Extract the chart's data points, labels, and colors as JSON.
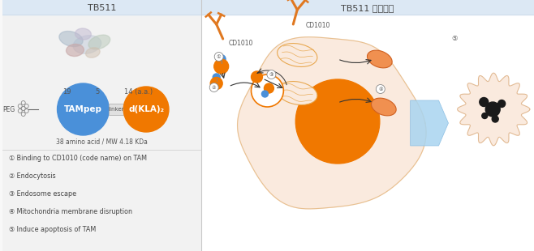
{
  "title_left": "TB511",
  "title_right": "TB511 작용기전",
  "left_bg": "#f0f0f0",
  "right_bg": "#ffffff",
  "header_bg": "#dce8f4",
  "tampep_color": "#4a90d9",
  "dkla_color": "#f07800",
  "orange": "#f07800",
  "blue": "#4a90d9",
  "cell_fill": "#faeade",
  "cell_border": "#e8c090",
  "nucleus_fill": "#f07800",
  "mito_fill": "#faeade",
  "mito_border": "#e8a850",
  "annotations": [
    "① Binding to CD1010 (code name) on TAM",
    "② Endocytosis",
    "③ Endosome escape",
    "④ Mitochondria membrane disruption",
    "⑤ Induce apoptosis of TAM"
  ],
  "label_19": "19",
  "label_5": "5",
  "label_14": "14 (a.a.)",
  "label_tampep": "TAMpep",
  "label_linker": "linker",
  "label_dkla": "d(KLA)₂",
  "label_peg": "PEG",
  "label_mw": "38 amino acid / MW 4.18 KDa",
  "cd1010_label": "CD1010",
  "divider_color": "#cccccc",
  "title_color": "#555555",
  "antibody_color": "#e07820"
}
